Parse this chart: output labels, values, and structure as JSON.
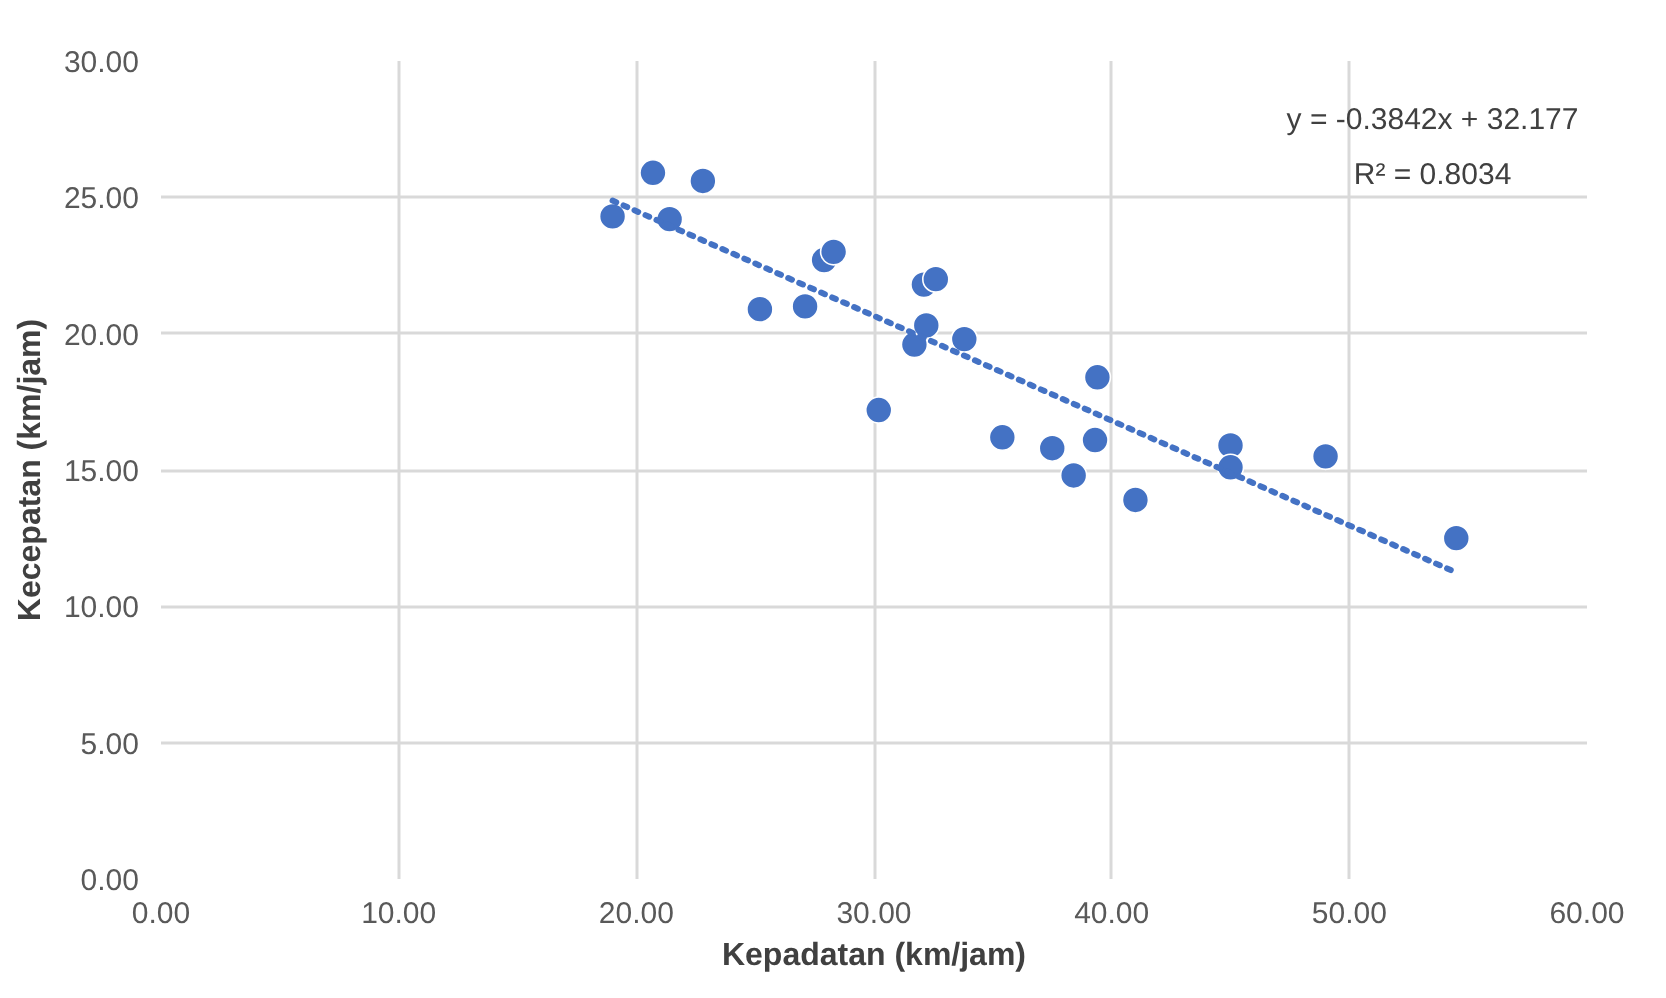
{
  "chart_data": {
    "type": "scatter",
    "xlabel": "Kepadatan (km/jam)",
    "ylabel": "Kecepatan (km/jam)",
    "xlim": [
      0,
      60
    ],
    "ylim": [
      0,
      30
    ],
    "xticks": [
      {
        "value": 0,
        "label": "0.00"
      },
      {
        "value": 10,
        "label": "10.00"
      },
      {
        "value": 20,
        "label": "20.00"
      },
      {
        "value": 30,
        "label": "30.00"
      },
      {
        "value": 40,
        "label": "40.00"
      },
      {
        "value": 50,
        "label": "50.00"
      },
      {
        "value": 60,
        "label": "60.00"
      }
    ],
    "yticks": [
      {
        "value": 0,
        "label": "0.00"
      },
      {
        "value": 5,
        "label": "5.00"
      },
      {
        "value": 10,
        "label": "10.00"
      },
      {
        "value": 15,
        "label": "15.00"
      },
      {
        "value": 20,
        "label": "20.00"
      },
      {
        "value": 25,
        "label": "25.00"
      },
      {
        "value": 30,
        "label": "30.00"
      }
    ],
    "grid": true,
    "annotations": [
      "y = -0.3842x + 32.177",
      "R² = 0.8034"
    ],
    "series": [
      {
        "color": "#4472c4",
        "marker": "circle",
        "x": [
          19.0,
          20.7,
          21.4,
          22.8,
          25.2,
          27.1,
          27.9,
          28.3,
          30.2,
          31.7,
          32.1,
          32.6,
          32.2,
          33.8,
          35.4,
          37.5,
          38.4,
          39.3,
          39.4,
          41.0,
          45.0,
          45.0,
          49.0,
          54.5
        ],
        "values": [
          24.3,
          25.9,
          24.2,
          25.6,
          20.9,
          21.0,
          22.7,
          23.0,
          17.2,
          19.6,
          21.8,
          22.0,
          20.3,
          19.8,
          16.2,
          15.8,
          14.8,
          16.1,
          18.4,
          13.9,
          15.9,
          15.1,
          15.5,
          12.5
        ]
      },
      {
        "type": "line",
        "color": "#4472c4",
        "line_style": "dotted",
        "marker": "none",
        "x": [
          19.0,
          54.5
        ],
        "values": [
          24.88,
          11.24
        ]
      }
    ]
  }
}
